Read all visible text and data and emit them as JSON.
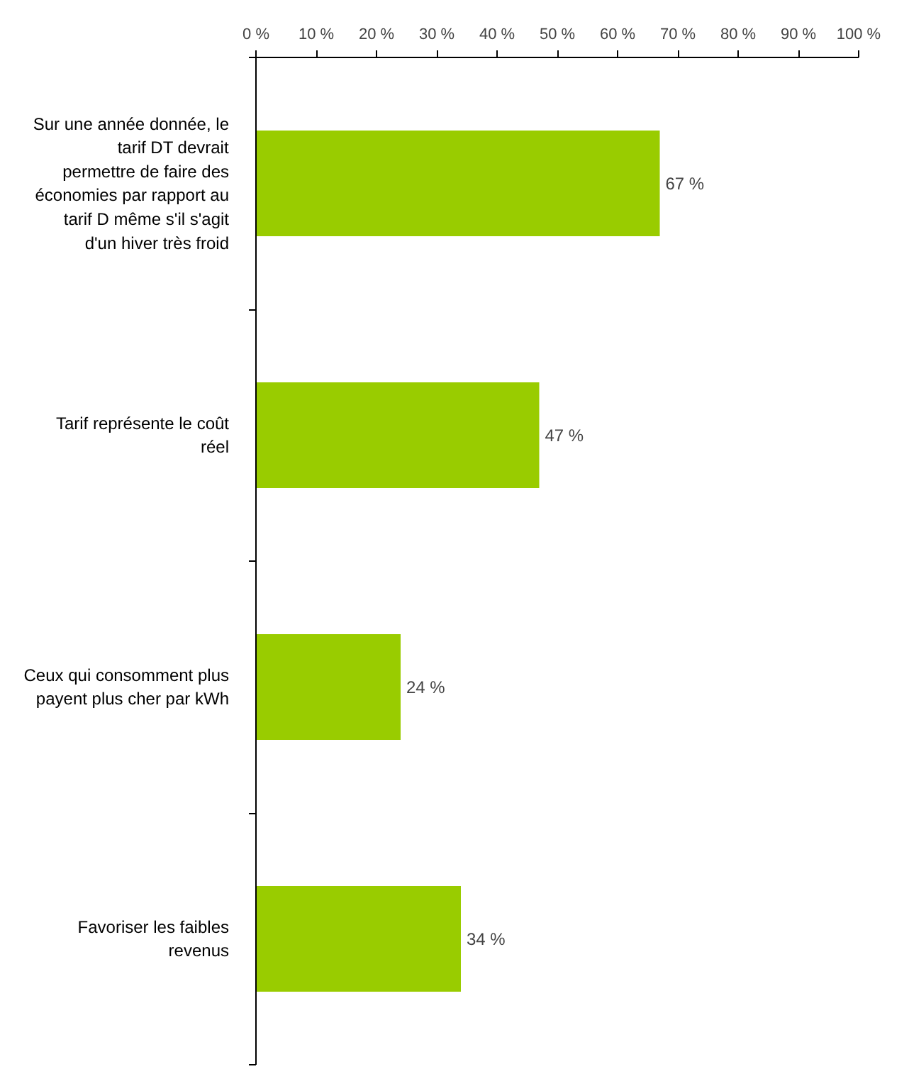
{
  "chart_data": {
    "type": "bar",
    "orientation": "horizontal",
    "categories": [
      "Sur une année donnée, le tarif DT devrait permettre de faire des économies par rapport au tarif D même s'il s'agit d'un hiver très froid",
      "Tarif représente le coût réel",
      "Ceux qui consomment plus payent plus cher par kWh",
      "Favoriser les faibles revenus"
    ],
    "values": [
      67,
      47,
      24,
      34
    ],
    "value_labels": [
      "67 %",
      "47 %",
      "24 %",
      "34 %"
    ],
    "color": "#99cc00",
    "xlim": [
      0,
      100
    ],
    "xticks": [
      {
        "value": 0,
        "label": "0 %"
      },
      {
        "value": 10,
        "label": "10 %"
      },
      {
        "value": 20,
        "label": "20 %"
      },
      {
        "value": 30,
        "label": "30 %"
      },
      {
        "value": 40,
        "label": "40 %"
      },
      {
        "value": 50,
        "label": "50 %"
      },
      {
        "value": 60,
        "label": "60 %"
      },
      {
        "value": 70,
        "label": "70 %"
      },
      {
        "value": 80,
        "label": "80 %"
      },
      {
        "value": 90,
        "label": "90 %"
      },
      {
        "value": 100,
        "label": "100 %"
      }
    ],
    "grid": false
  }
}
